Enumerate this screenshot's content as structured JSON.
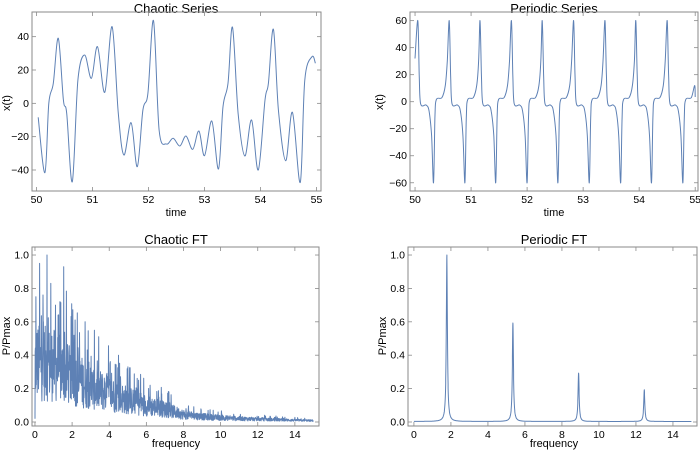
{
  "chart_data": [
    {
      "id": "chaotic-series",
      "type": "line",
      "title": "Chaotic Series",
      "xlabel": "time",
      "ylabel": "x(t)",
      "xlim": [
        49.92,
        55.08
      ],
      "ylim": [
        -52.6,
        54.8
      ],
      "xticks": [
        50,
        51,
        52,
        53,
        54,
        55
      ],
      "yticks": [
        -40,
        -20,
        0,
        20,
        40
      ],
      "color": "#5E81B5",
      "points": [
        [
          50.03,
          -8.4
        ],
        [
          50.15,
          -41.6
        ],
        [
          50.22,
          0
        ],
        [
          50.3,
          12
        ],
        [
          50.39,
          39
        ],
        [
          50.48,
          2
        ],
        [
          50.54,
          -6
        ],
        [
          50.64,
          -47
        ],
        [
          50.74,
          14
        ],
        [
          50.86,
          29
        ],
        [
          50.98,
          15
        ],
        [
          51.09,
          34
        ],
        [
          51.22,
          6.6
        ],
        [
          51.35,
          46
        ],
        [
          51.46,
          -6
        ],
        [
          51.56,
          -31
        ],
        [
          51.69,
          -11.6
        ],
        [
          51.8,
          -38
        ],
        [
          51.9,
          -4
        ],
        [
          51.99,
          6
        ],
        [
          52.09,
          49.6
        ],
        [
          52.19,
          -16
        ],
        [
          52.32,
          -24.4
        ],
        [
          52.44,
          -21
        ],
        [
          52.56,
          -25.6
        ],
        [
          52.67,
          -19.6
        ],
        [
          52.79,
          -27.6
        ],
        [
          52.9,
          -16.6
        ],
        [
          53.0,
          -31.4
        ],
        [
          53.13,
          -10.6
        ],
        [
          53.25,
          -39.4
        ],
        [
          53.33,
          -2
        ],
        [
          53.42,
          12
        ],
        [
          53.5,
          45.6
        ],
        [
          53.6,
          -6
        ],
        [
          53.72,
          -31.6
        ],
        [
          53.84,
          -10
        ],
        [
          53.96,
          -40
        ],
        [
          54.08,
          2
        ],
        [
          54.14,
          12
        ],
        [
          54.23,
          44.4
        ],
        [
          54.32,
          -4
        ],
        [
          54.45,
          -34.4
        ],
        [
          54.57,
          -5.4
        ],
        [
          54.71,
          -47.4
        ],
        [
          54.79,
          14
        ],
        [
          54.92,
          28
        ],
        [
          54.98,
          24
        ]
      ]
    },
    {
      "id": "periodic-series",
      "type": "line",
      "title": "Periodic Series",
      "xlabel": "time",
      "ylabel": "x(t)",
      "xlim": [
        49.91,
        55.05
      ],
      "ylim": [
        -66.1,
        66.4
      ],
      "xticks": [
        50,
        51,
        52,
        53,
        54,
        55
      ],
      "yticks": [
        -60,
        -40,
        -20,
        0,
        20,
        40,
        60
      ],
      "color": "#5E81B5",
      "start_value": 32,
      "peak_value": 60,
      "trough_value": -60,
      "peak_times": [
        50.05,
        50.61,
        51.16,
        51.72,
        52.27,
        52.83,
        53.39,
        53.94,
        54.5
      ],
      "period": 0.5565
    },
    {
      "id": "chaotic-ft",
      "type": "line",
      "title": "Chaotic FT",
      "xlabel": "frequency",
      "ylabel": "P/Pmax",
      "xlim": [
        -0.16,
        15.3
      ],
      "ylim": [
        -0.024,
        1.048
      ],
      "xticks": [
        0,
        2,
        4,
        6,
        8,
        10,
        12,
        14
      ],
      "yticks": [
        0,
        0.2,
        0.4,
        0.6,
        0.8,
        1.0
      ],
      "color": "#5E81B5",
      "freq_range": [
        0,
        15
      ],
      "envelope": [
        [
          0,
          0.36
        ],
        [
          1,
          0.34
        ],
        [
          2,
          0.27
        ],
        [
          3,
          0.21
        ],
        [
          4,
          0.17
        ],
        [
          5,
          0.13
        ],
        [
          6,
          0.1
        ],
        [
          7,
          0.075
        ],
        [
          8,
          0.045
        ],
        [
          9,
          0.032
        ],
        [
          10,
          0.025
        ],
        [
          12,
          0.016
        ],
        [
          15,
          0.008
        ]
      ],
      "peaks": [
        [
          0.05,
          0.75
        ],
        [
          0.25,
          0.95
        ],
        [
          0.45,
          0.6
        ],
        [
          0.65,
          1.0
        ],
        [
          0.85,
          0.83
        ],
        [
          1.1,
          0.7
        ],
        [
          1.35,
          0.72
        ],
        [
          1.55,
          0.93
        ],
        [
          2.1,
          0.52
        ],
        [
          2.7,
          0.6
        ],
        [
          3.2,
          0.55
        ],
        [
          4.5,
          0.4
        ],
        [
          5.0,
          0.33
        ],
        [
          6.2,
          0.22
        ]
      ]
    },
    {
      "id": "periodic-ft",
      "type": "line",
      "title": "Periodic FT",
      "xlabel": "frequency",
      "ylabel": "P/Pmax",
      "xlim": [
        -0.32,
        15.3
      ],
      "ylim": [
        -0.024,
        1.048
      ],
      "xticks": [
        0,
        2,
        4,
        6,
        8,
        10,
        12,
        14
      ],
      "yticks": [
        0,
        0.2,
        0.4,
        0.6,
        0.8,
        1.0
      ],
      "color": "#5E81B5",
      "freq_range": [
        0,
        15
      ],
      "peaks": [
        [
          1.78,
          1.0
        ],
        [
          5.35,
          0.59
        ],
        [
          8.9,
          0.29
        ],
        [
          12.45,
          0.19
        ]
      ]
    }
  ]
}
